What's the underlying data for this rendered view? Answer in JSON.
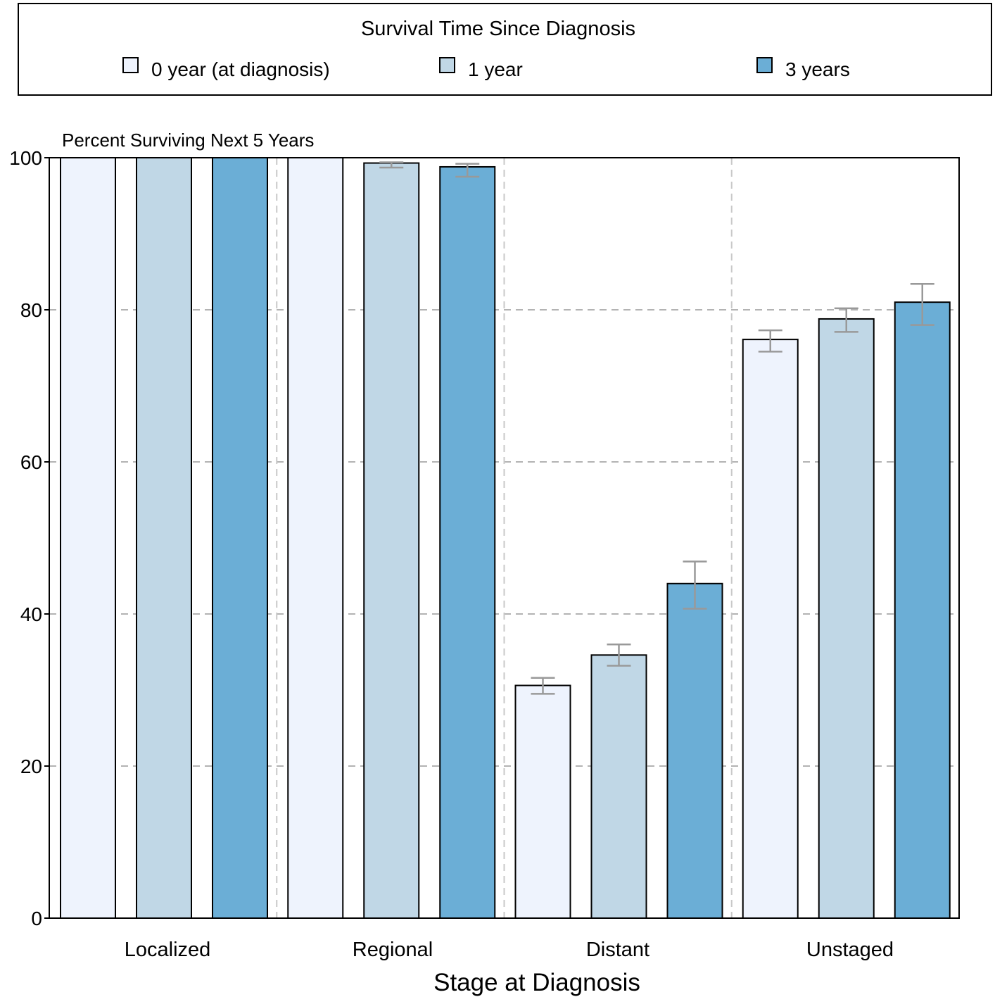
{
  "chart_data": {
    "type": "bar",
    "legend_title": "Survival Time Since Diagnosis",
    "legend_placement": "top",
    "ylabel": "Percent Surviving Next 5 Years",
    "xlabel": "Stage at Diagnosis",
    "ylim": [
      0,
      100
    ],
    "yticks": [
      0,
      20,
      40,
      60,
      80,
      100
    ],
    "grid": true,
    "categories": [
      "Localized",
      "Regional",
      "Distant",
      "Unstaged"
    ],
    "series": [
      {
        "name": "0 year (at diagnosis)",
        "color": "#eef3fd",
        "values": [
          100,
          100,
          30.6,
          76.1
        ],
        "error_low": [
          null,
          null,
          29.5,
          74.5
        ],
        "error_high": [
          null,
          null,
          31.6,
          77.3
        ]
      },
      {
        "name": "1 year",
        "color": "#c0d7e6",
        "values": [
          100,
          99.3,
          34.6,
          78.8
        ],
        "error_low": [
          null,
          98.7,
          33.2,
          77.1
        ],
        "error_high": [
          null,
          99.4,
          36.0,
          80.2
        ]
      },
      {
        "name": "3 years",
        "color": "#6baed6",
        "values": [
          100,
          98.8,
          44.0,
          81.0
        ],
        "error_low": [
          null,
          97.5,
          40.7,
          78.0
        ],
        "error_high": [
          null,
          99.2,
          46.9,
          83.4
        ]
      }
    ]
  }
}
